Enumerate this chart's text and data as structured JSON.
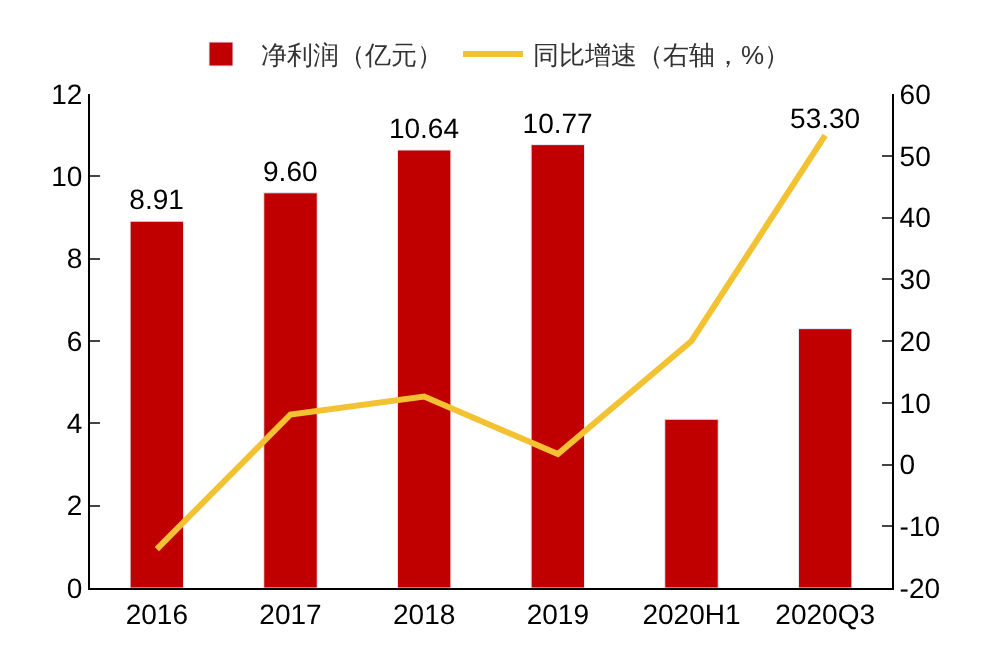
{
  "chart_data": {
    "type": "bar",
    "categories": [
      "2016",
      "2017",
      "2018",
      "2019",
      "2020H1",
      "2020Q3"
    ],
    "series": [
      {
        "name": "净利润（亿元）",
        "color": "#c00000",
        "values": [
          8.91,
          9.6,
          10.64,
          10.77,
          4.1,
          6.3
        ],
        "value_labels": [
          "8.91",
          "9.60",
          "10.64",
          "10.77",
          null,
          null
        ]
      },
      {
        "name": "同比增速（右轴，%）",
        "type": "line",
        "axis": "y2",
        "color": "#f2c232",
        "values": [
          -13.7,
          8.1,
          11,
          1.7,
          20,
          53.3
        ],
        "value_labels": [
          null,
          null,
          null,
          null,
          null,
          "53.30"
        ]
      }
    ],
    "ylim": [
      0,
      12
    ],
    "yticks": [
      0,
      2,
      4,
      6,
      8,
      10,
      12
    ],
    "y2lim": [
      -20,
      60
    ],
    "y2ticks": [
      -20,
      -10,
      0,
      10,
      20,
      30,
      40,
      50,
      60
    ],
    "legend": "top",
    "marker": "none",
    "line_style": "solid"
  }
}
